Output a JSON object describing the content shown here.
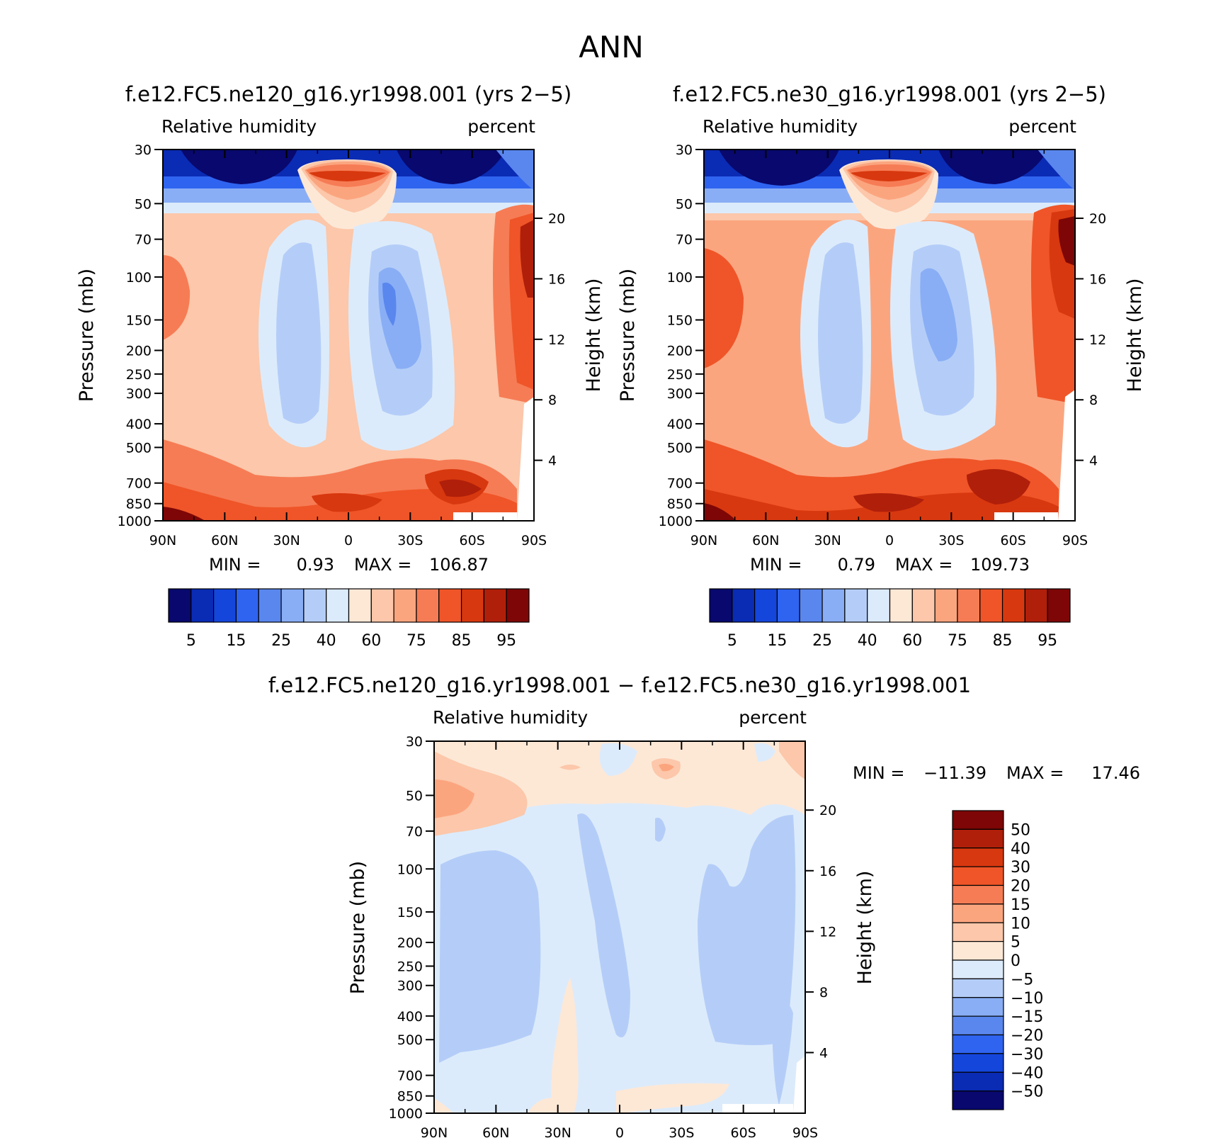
{
  "page_title": "ANN",
  "chart_data": [
    {
      "type": "contour",
      "id": "ne120",
      "title": "f.e12.FC5.ne120_g16.yr1998.001 (yrs 2−5)",
      "left_label": "Relative humidity",
      "right_label": "percent",
      "ylabel": "Pressure (mb)",
      "y2label": "Height (km)",
      "x_ticks": [
        "90N",
        "60N",
        "30N",
        "0",
        "30S",
        "60S",
        "90S"
      ],
      "y_ticks": [
        "30",
        "50",
        "70",
        "100",
        "150",
        "200",
        "250",
        "300",
        "400",
        "500",
        "700",
        "850",
        "1000"
      ],
      "y2_ticks": [
        "20",
        "16",
        "12",
        "8",
        "4"
      ],
      "stats": {
        "min_label": "MIN =",
        "min": "0.93",
        "max_label": "MAX =",
        "max": "106.87"
      },
      "colorbar": {
        "orientation": "horizontal",
        "labels": [
          "5",
          "15",
          "25",
          "40",
          "60",
          "75",
          "85",
          "95"
        ],
        "colors": [
          "#08086e",
          "#0a2bb4",
          "#1446dc",
          "#2f64f0",
          "#5a87ee",
          "#89aef5",
          "#b4cdf8",
          "#dcebfb",
          "#fde8d6",
          "#fcc7aa",
          "#fba57f",
          "#f67c55",
          "#ef5528",
          "#d8380f",
          "#b01f0a",
          "#7e0606"
        ]
      }
    },
    {
      "type": "contour",
      "id": "ne30",
      "title": "f.e12.FC5.ne30_g16.yr1998.001 (yrs 2−5)",
      "left_label": "Relative humidity",
      "right_label": "percent",
      "ylabel": "Pressure (mb)",
      "y2label": "Height (km)",
      "x_ticks": [
        "90N",
        "60N",
        "30N",
        "0",
        "30S",
        "60S",
        "90S"
      ],
      "y_ticks": [
        "30",
        "50",
        "70",
        "100",
        "150",
        "200",
        "250",
        "300",
        "400",
        "500",
        "700",
        "850",
        "1000"
      ],
      "y2_ticks": [
        "20",
        "16",
        "12",
        "8",
        "4"
      ],
      "stats": {
        "min_label": "MIN =",
        "min": "0.79",
        "max_label": "MAX =",
        "max": "109.73"
      },
      "colorbar": {
        "orientation": "horizontal",
        "labels": [
          "5",
          "15",
          "25",
          "40",
          "60",
          "75",
          "85",
          "95"
        ],
        "colors": [
          "#08086e",
          "#0a2bb4",
          "#1446dc",
          "#2f64f0",
          "#5a87ee",
          "#89aef5",
          "#b4cdf8",
          "#dcebfb",
          "#fde8d6",
          "#fcc7aa",
          "#fba57f",
          "#f67c55",
          "#ef5528",
          "#d8380f",
          "#b01f0a",
          "#7e0606"
        ]
      }
    },
    {
      "type": "contour",
      "id": "diff",
      "title": "f.e12.FC5.ne120_g16.yr1998.001 − f.e12.FC5.ne30_g16.yr1998.001",
      "left_label": "Relative humidity",
      "right_label": "percent",
      "ylabel": "Pressure (mb)",
      "y2label": "Height (km)",
      "x_ticks": [
        "90N",
        "60N",
        "30N",
        "0",
        "30S",
        "60S",
        "90S"
      ],
      "y_ticks": [
        "30",
        "50",
        "70",
        "100",
        "150",
        "200",
        "250",
        "300",
        "400",
        "500",
        "700",
        "850",
        "1000"
      ],
      "y2_ticks": [
        "20",
        "16",
        "12",
        "8",
        "4"
      ],
      "stats": {
        "min_label": "MIN =",
        "min": "−11.39",
        "max_label": "MAX =",
        "max": "17.46"
      },
      "colorbar": {
        "orientation": "vertical",
        "labels": [
          "50",
          "40",
          "30",
          "20",
          "15",
          "10",
          "5",
          "0",
          "−5",
          "−10",
          "−15",
          "−20",
          "−30",
          "−40",
          "−50"
        ],
        "colors": [
          "#7e0606",
          "#b01f0a",
          "#d8380f",
          "#ef5528",
          "#f67c55",
          "#fba57f",
          "#fcc7aa",
          "#fde8d6",
          "#dcebfb",
          "#b4cdf8",
          "#89aef5",
          "#5a87ee",
          "#2f64f0",
          "#1446dc",
          "#0a2bb4",
          "#08086e"
        ]
      }
    }
  ]
}
